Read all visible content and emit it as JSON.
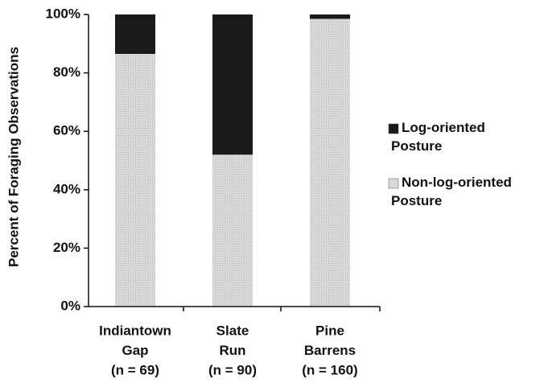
{
  "chart_data": {
    "type": "stacked_bar",
    "ylabel": "Percent of Foraging Observations",
    "categories": [
      [
        "Indiantown",
        "Gap",
        "(n = 69)"
      ],
      [
        "Slate",
        "Run",
        "(n = 90)"
      ],
      [
        "Pine",
        "Barrens",
        "(n = 160)"
      ]
    ],
    "series": [
      {
        "name": "Non-log-oriented Posture",
        "color": "#d9d9d9",
        "values": [
          86.5,
          52,
          98.5
        ]
      },
      {
        "name": "Log-oriented Posture",
        "color": "#1a1a1a",
        "values": [
          13.5,
          48,
          1.5
        ]
      }
    ],
    "ylim": [
      0,
      100
    ],
    "yticks": [
      {
        "value": 0,
        "label": "0%"
      },
      {
        "value": 20,
        "label": "20%"
      },
      {
        "value": 40,
        "label": "40%"
      },
      {
        "value": 60,
        "label": "60%"
      },
      {
        "value": 80,
        "label": "80%"
      },
      {
        "value": 100,
        "label": "100%"
      }
    ]
  }
}
